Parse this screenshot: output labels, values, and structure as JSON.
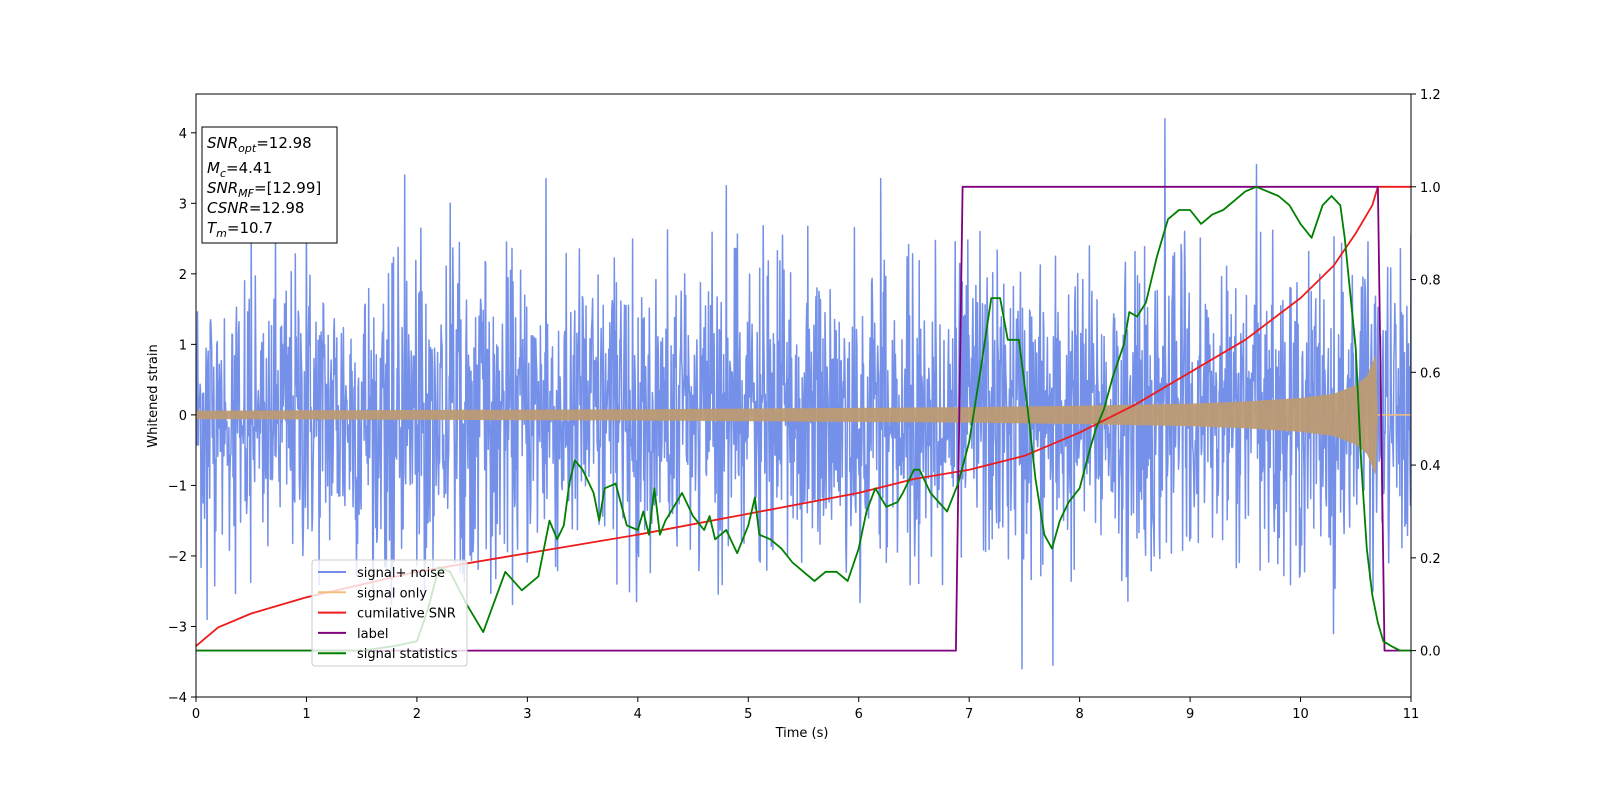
{
  "chart_data": {
    "type": "line",
    "xlabel": "Time (s)",
    "ylabel": "Whitened strain",
    "xlim": [
      0,
      11
    ],
    "ylim": [
      -4,
      4.55
    ],
    "y2lim": [
      -0.1,
      1.2
    ],
    "x_ticks": [
      0,
      1,
      2,
      3,
      4,
      5,
      6,
      7,
      8,
      9,
      10,
      11
    ],
    "y_ticks": [
      -4,
      -3,
      -2,
      -1,
      0,
      1,
      2,
      3,
      4
    ],
    "y_tick_labels": [
      "−4",
      "−3",
      "−2",
      "−1",
      "0",
      "1",
      "2",
      "3",
      "4"
    ],
    "y2_ticks": [
      0.0,
      0.2,
      0.4,
      0.6,
      0.8,
      1.0,
      1.2
    ],
    "y2_tick_labels": [
      "0.0",
      "0.2",
      "0.4",
      "0.6",
      "0.8",
      "1.0",
      "1.2"
    ],
    "grid": false,
    "legend_position": "lower-left",
    "annotation": [
      {
        "symbol": "SNR",
        "sub": "opt",
        "value": "=12.98"
      },
      {
        "symbol": "M",
        "sub": "c",
        "value": "=4.41"
      },
      {
        "symbol": "SNR",
        "sub": "MF",
        "value": "=[12.99]"
      },
      {
        "symbol": "CSNR",
        "sub": "",
        "value": "=12.98"
      },
      {
        "symbol": "T",
        "sub": "m",
        "value": "=10.7"
      }
    ],
    "series": [
      {
        "name": "signal+ noise",
        "axis": "left",
        "color": "#7490e8",
        "description_points": {
          "x_range": [
            0,
            11
          ],
          "typical_amplitude": [
            -2.0,
            2.3
          ],
          "spikes": [
            [
              0.5,
              2.9
            ],
            [
              1.0,
              3.1
            ],
            [
              1.89,
              3.4
            ],
            [
              2.3,
              3.0
            ],
            [
              3.17,
              3.35
            ],
            [
              4.8,
              3.25
            ],
            [
              6.2,
              3.35
            ],
            [
              7.1,
              2.6
            ],
            [
              7.48,
              -3.6
            ],
            [
              7.76,
              -3.55
            ],
            [
              8.77,
              4.2
            ],
            [
              9.6,
              3.55
            ],
            [
              10.3,
              -3.1
            ],
            [
              0.1,
              -2.9
            ]
          ]
        }
      },
      {
        "name": "signal only",
        "axis": "left",
        "color": "#f5bf7a",
        "description_points": {
          "envelope_x": [
            0,
            2,
            4,
            6,
            7,
            8,
            9,
            9.5,
            10,
            10.3,
            10.5,
            10.6,
            10.68,
            10.7,
            11
          ],
          "envelope_amp": [
            0.06,
            0.07,
            0.08,
            0.1,
            0.11,
            0.13,
            0.16,
            0.19,
            0.24,
            0.3,
            0.42,
            0.55,
            0.85,
            0.0,
            0.0
          ]
        }
      },
      {
        "name": "cumilative SNR",
        "axis": "right",
        "color": "#ee1b1b",
        "x": [
          0,
          0.2,
          0.5,
          1,
          2,
          3,
          4,
          5,
          6,
          6.5,
          7,
          7.5,
          8,
          8.5,
          9,
          9.5,
          10,
          10.3,
          10.5,
          10.65,
          10.7,
          11
        ],
        "values": [
          0.01,
          0.05,
          0.08,
          0.115,
          0.17,
          0.21,
          0.25,
          0.295,
          0.34,
          0.37,
          0.39,
          0.42,
          0.47,
          0.53,
          0.6,
          0.67,
          0.76,
          0.83,
          0.9,
          0.96,
          1.0,
          1.0
        ]
      },
      {
        "name": "label",
        "axis": "right",
        "color": "#800080",
        "x": [
          0,
          6.88,
          6.94,
          10.7,
          10.76,
          11
        ],
        "values": [
          0,
          0,
          1,
          1,
          0,
          0
        ]
      },
      {
        "name": "signal statistics",
        "axis": "right",
        "color": "#008000",
        "x": [
          0,
          0.5,
          1,
          1.5,
          1.8,
          2.0,
          2.1,
          2.2,
          2.3,
          2.45,
          2.6,
          2.8,
          2.95,
          3.1,
          3.2,
          3.27,
          3.33,
          3.38,
          3.43,
          3.5,
          3.6,
          3.65,
          3.7,
          3.8,
          3.9,
          4.0,
          4.05,
          4.1,
          4.15,
          4.2,
          4.25,
          4.3,
          4.4,
          4.5,
          4.6,
          4.65,
          4.7,
          4.8,
          4.9,
          5.0,
          5.06,
          5.1,
          5.2,
          5.3,
          5.4,
          5.5,
          5.6,
          5.7,
          5.8,
          5.9,
          6.0,
          6.07,
          6.15,
          6.25,
          6.35,
          6.4,
          6.5,
          6.55,
          6.65,
          6.8,
          6.9,
          7.0,
          7.1,
          7.2,
          7.28,
          7.35,
          7.45,
          7.53,
          7.6,
          7.68,
          7.75,
          7.82,
          7.9,
          8.0,
          8.1,
          8.15,
          8.22,
          8.3,
          8.4,
          8.45,
          8.52,
          8.6,
          8.7,
          8.8,
          8.9,
          9.0,
          9.1,
          9.2,
          9.3,
          9.4,
          9.5,
          9.6,
          9.7,
          9.8,
          9.9,
          10.0,
          10.1,
          10.2,
          10.28,
          10.36,
          10.4,
          10.5,
          10.55,
          10.6,
          10.65,
          10.7,
          10.75,
          10.82,
          10.9,
          11.0
        ],
        "values": [
          0.0,
          0.0,
          0.0,
          0.0,
          0.01,
          0.02,
          0.09,
          0.18,
          0.17,
          0.1,
          0.04,
          0.17,
          0.13,
          0.16,
          0.28,
          0.24,
          0.27,
          0.36,
          0.41,
          0.39,
          0.34,
          0.28,
          0.35,
          0.36,
          0.27,
          0.26,
          0.3,
          0.25,
          0.35,
          0.25,
          0.28,
          0.3,
          0.34,
          0.29,
          0.26,
          0.29,
          0.24,
          0.26,
          0.21,
          0.27,
          0.33,
          0.25,
          0.24,
          0.22,
          0.19,
          0.17,
          0.15,
          0.17,
          0.17,
          0.15,
          0.22,
          0.3,
          0.35,
          0.31,
          0.32,
          0.34,
          0.39,
          0.39,
          0.34,
          0.3,
          0.36,
          0.45,
          0.6,
          0.76,
          0.76,
          0.67,
          0.67,
          0.52,
          0.37,
          0.25,
          0.22,
          0.28,
          0.32,
          0.35,
          0.44,
          0.48,
          0.52,
          0.59,
          0.66,
          0.73,
          0.72,
          0.75,
          0.85,
          0.93,
          0.95,
          0.95,
          0.92,
          0.94,
          0.95,
          0.97,
          0.99,
          1.0,
          0.99,
          0.98,
          0.96,
          0.92,
          0.89,
          0.96,
          0.98,
          0.96,
          0.89,
          0.65,
          0.4,
          0.22,
          0.12,
          0.06,
          0.02,
          0.01,
          0.0,
          0.0
        ]
      }
    ]
  }
}
